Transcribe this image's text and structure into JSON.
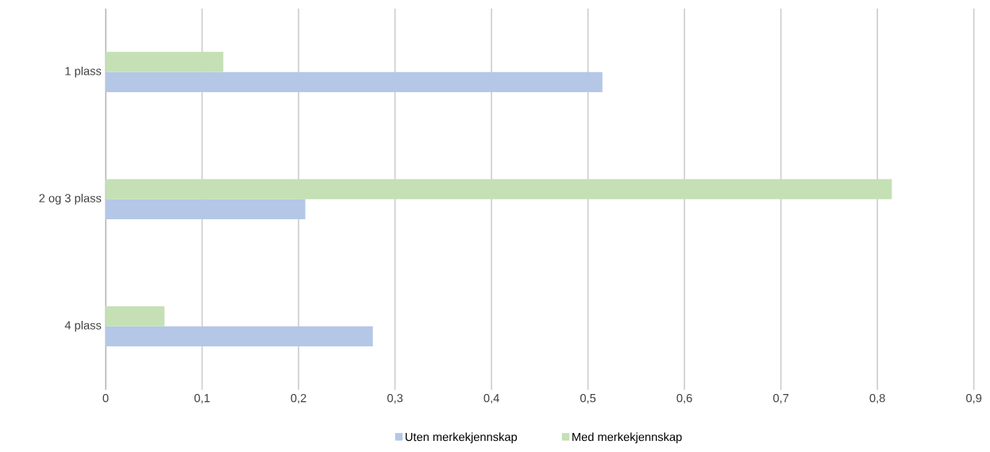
{
  "chart_data": {
    "type": "bar",
    "orientation": "horizontal",
    "categories": [
      "1 plass",
      "2 og 3 plass",
      "4 plass"
    ],
    "series": [
      {
        "name": "Uten merkekjennskap",
        "color": "#b4c7e7",
        "values": [
          0.515,
          0.207,
          0.277
        ]
      },
      {
        "name": "Med merkekjennskap",
        "color": "#c5e0b4",
        "values": [
          0.122,
          0.815,
          0.061
        ]
      }
    ],
    "xlim": [
      0,
      0.9
    ],
    "xticks": [
      0,
      {
        "value": 0.1,
        "label": "0,1"
      },
      {
        "value": 0.2,
        "label": "0,2"
      },
      {
        "value": 0.3,
        "label": "0,3"
      },
      {
        "value": 0.4,
        "label": "0,4"
      },
      {
        "value": 0.5,
        "label": "0,5"
      },
      {
        "value": 0.6,
        "label": "0,6"
      },
      {
        "value": 0.7,
        "label": "0,7"
      },
      {
        "value": 0.8,
        "label": "0,8"
      },
      {
        "value": 0.9,
        "label": "0,9"
      }
    ],
    "grid": "x",
    "legend": "bottom"
  }
}
